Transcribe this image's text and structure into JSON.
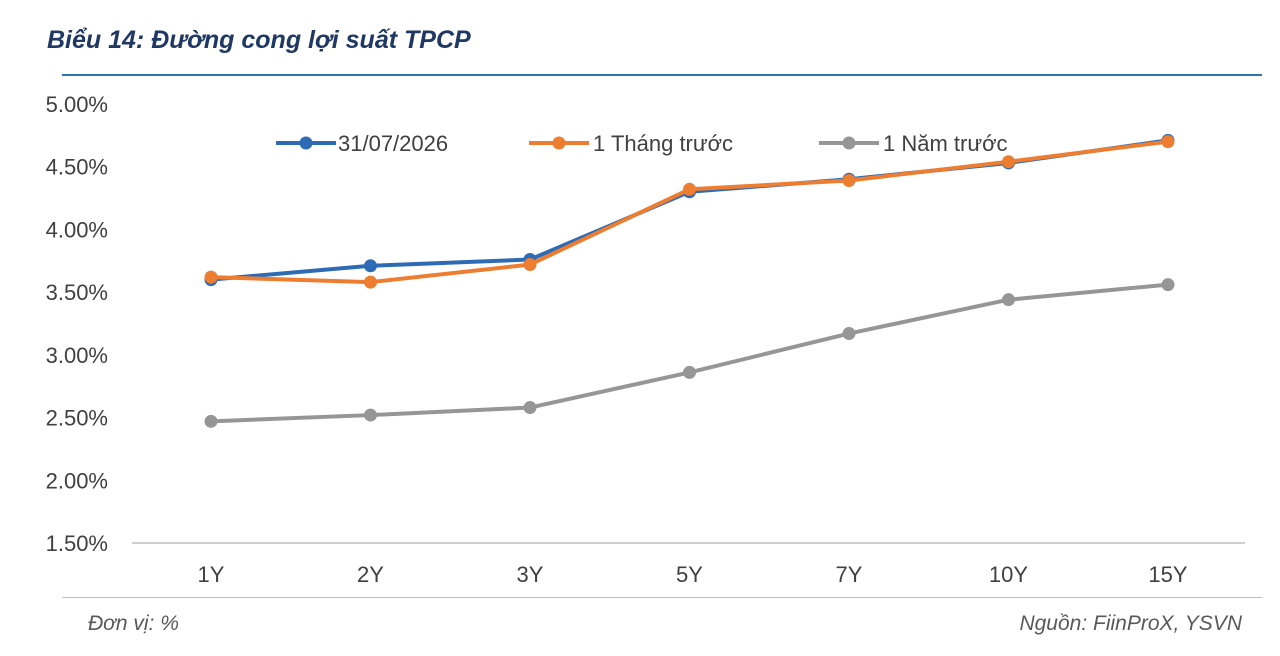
{
  "header": {
    "title": "Biểu 14: Đường cong lợi suất TPCP"
  },
  "footer": {
    "unit": "Đơn vị: %",
    "source": "Nguồn: FiinProX, YSVN"
  },
  "chart_data": {
    "type": "line",
    "title": "Biểu 14: Đường cong lợi suất TPCP",
    "xlabel": "",
    "ylabel": "",
    "categories": [
      "1Y",
      "2Y",
      "3Y",
      "5Y",
      "7Y",
      "10Y",
      "15Y"
    ],
    "y_ticks": [
      "1.50%",
      "2.00%",
      "2.50%",
      "3.00%",
      "3.50%",
      "4.00%",
      "4.50%",
      "5.00%"
    ],
    "ylim": [
      1.5,
      5.0
    ],
    "grid": false,
    "legend_position": "top",
    "series": [
      {
        "name": "31/07/2026",
        "color": "#2e6bb5",
        "values": [
          3.6,
          3.71,
          3.76,
          4.3,
          4.4,
          4.53,
          4.71
        ]
      },
      {
        "name": "1 Tháng trước",
        "color": "#ed7d31",
        "values": [
          3.62,
          3.58,
          3.72,
          4.32,
          4.39,
          4.54,
          4.7
        ]
      },
      {
        "name": "1 Năm trước",
        "color": "#969696",
        "values": [
          2.47,
          2.52,
          2.58,
          2.86,
          3.17,
          3.44,
          3.56
        ]
      }
    ]
  }
}
